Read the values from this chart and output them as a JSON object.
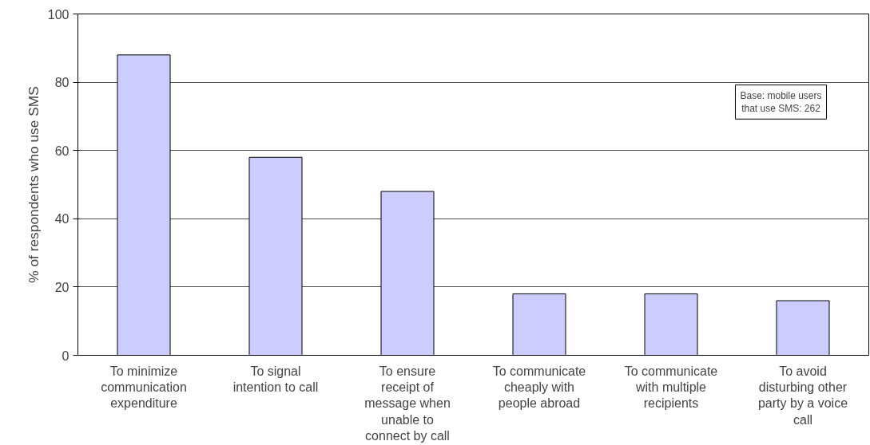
{
  "chart_data": {
    "type": "bar",
    "ylabel": "% of respondents who use SMS",
    "categories": [
      "To minimize\ncommunication\nexpenditure",
      "To signal\nintention to call",
      "To ensure\nreceipt of\nmessage when\nunable to\nconnect by call",
      "To communicate\ncheaply with\npeople abroad",
      "To communicate\nwith multiple\nrecipients",
      "To avoid\ndisturbing other\nparty by a voice\ncall"
    ],
    "values": [
      88,
      58,
      48,
      18,
      18,
      16
    ],
    "color": "#ccccff",
    "ylim": [
      0,
      100
    ],
    "yticks": [
      0,
      20,
      40,
      60,
      80,
      100
    ],
    "grid": "y",
    "annotations": [
      "Base: mobile users\nthat use SMS: 262"
    ]
  }
}
